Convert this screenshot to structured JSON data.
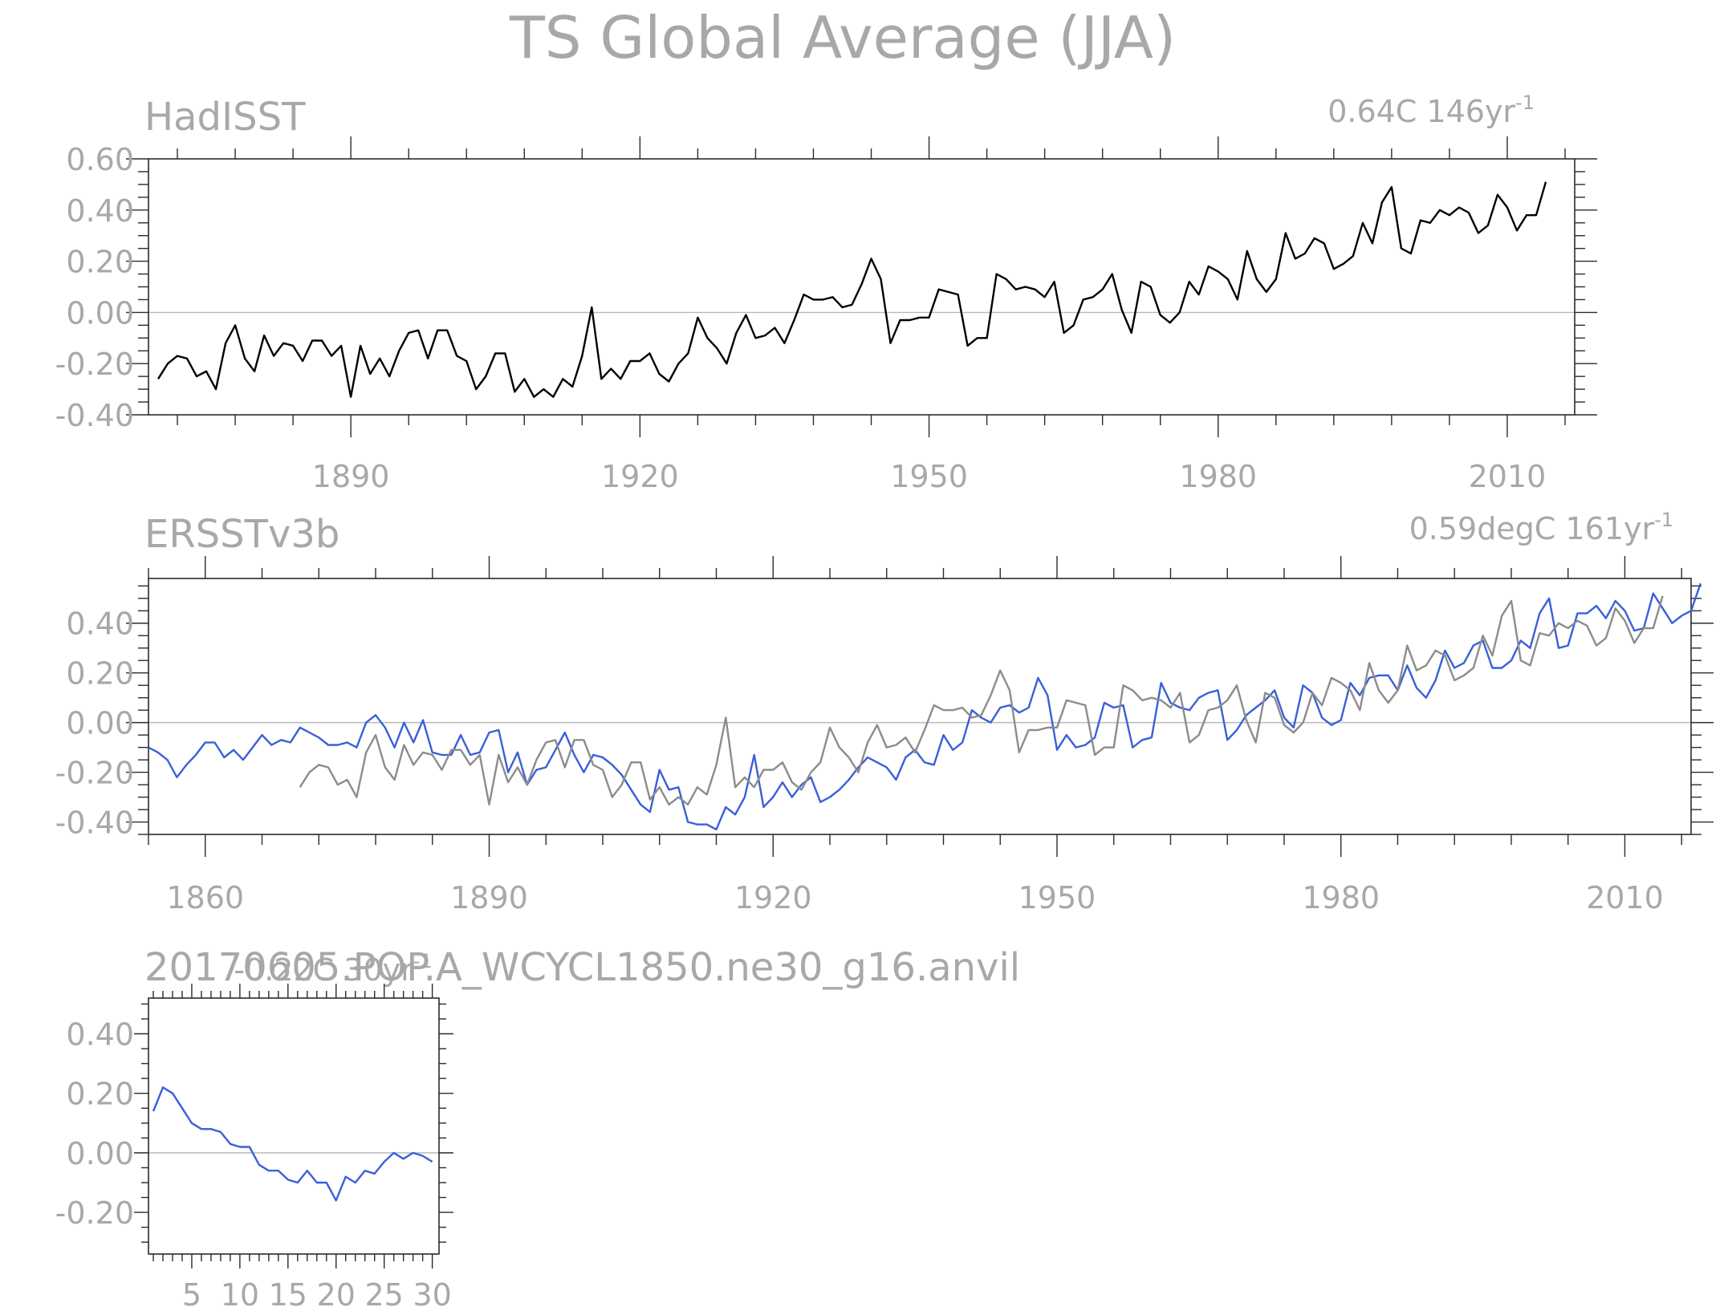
{
  "title": "TS Global Average (JJA)",
  "colors": {
    "text": "#a8a8a8",
    "black_series": "#000000",
    "blue_series": "#3a5fd9",
    "grey_series": "#8c8c8c"
  },
  "chart_data": [
    {
      "type": "line",
      "title": "HadISST",
      "right_text": "0.64C 146yr",
      "right_text_sup": "-1",
      "xlabel": "",
      "ylabel": "",
      "xlim": [
        1869,
        2017
      ],
      "ylim": [
        -0.4,
        0.6
      ],
      "yticks": [
        -0.4,
        -0.2,
        0.0,
        0.2,
        0.4,
        0.6
      ],
      "ytick_labels": [
        "-0.40",
        "-0.20",
        "0.00",
        "0.20",
        "0.40",
        "0.60"
      ],
      "xticks": [
        1890,
        1920,
        1950,
        1980,
        2010
      ],
      "xtick_labels": [
        "1890",
        "1920",
        "1950",
        "1980",
        "2010"
      ],
      "grid": false,
      "series": [
        {
          "color": "#000000",
          "x_start": 1870,
          "values": [
            -0.26,
            -0.2,
            -0.17,
            -0.18,
            -0.25,
            -0.23,
            -0.3,
            -0.12,
            -0.05,
            -0.18,
            -0.23,
            -0.09,
            -0.17,
            -0.12,
            -0.13,
            -0.19,
            -0.11,
            -0.11,
            -0.17,
            -0.13,
            -0.33,
            -0.13,
            -0.24,
            -0.18,
            -0.25,
            -0.15,
            -0.08,
            -0.07,
            -0.18,
            -0.07,
            -0.07,
            -0.17,
            -0.19,
            -0.3,
            -0.25,
            -0.16,
            -0.16,
            -0.31,
            -0.26,
            -0.33,
            -0.3,
            -0.33,
            -0.26,
            -0.29,
            -0.17,
            0.02,
            -0.26,
            -0.22,
            -0.26,
            -0.19,
            -0.19,
            -0.16,
            -0.24,
            -0.27,
            -0.2,
            -0.16,
            -0.02,
            -0.1,
            -0.14,
            -0.2,
            -0.08,
            -0.01,
            -0.1,
            -0.09,
            -0.06,
            -0.12,
            -0.03,
            0.07,
            0.05,
            0.05,
            0.06,
            0.02,
            0.03,
            0.11,
            0.21,
            0.13,
            -0.12,
            -0.03,
            -0.03,
            -0.02,
            -0.02,
            0.09,
            0.08,
            0.07,
            -0.13,
            -0.1,
            -0.1,
            0.15,
            0.13,
            0.09,
            0.1,
            0.09,
            0.06,
            0.12,
            -0.08,
            -0.05,
            0.05,
            0.06,
            0.09,
            0.15,
            0.01,
            -0.08,
            0.12,
            0.1,
            -0.01,
            -0.04,
            0.0,
            0.12,
            0.07,
            0.18,
            0.16,
            0.13,
            0.05,
            0.24,
            0.13,
            0.08,
            0.13,
            0.31,
            0.21,
            0.23,
            0.29,
            0.27,
            0.17,
            0.19,
            0.22,
            0.35,
            0.27,
            0.43,
            0.49,
            0.25,
            0.23,
            0.36,
            0.35,
            0.4,
            0.38,
            0.41,
            0.39,
            0.31,
            0.34,
            0.46,
            0.41,
            0.32,
            0.38,
            0.38,
            0.51
          ]
        }
      ]
    },
    {
      "type": "line",
      "title": "ERSSTv3b",
      "right_text": "0.59degC 161yr",
      "right_text_sup": "-1",
      "xlabel": "",
      "ylabel": "",
      "xlim": [
        1854,
        2017
      ],
      "ylim": [
        -0.45,
        0.58
      ],
      "yticks": [
        -0.4,
        -0.2,
        0.0,
        0.2,
        0.4
      ],
      "ytick_labels": [
        "-0.40",
        "-0.20",
        "0.00",
        "0.20",
        "0.40"
      ],
      "xticks": [
        1860,
        1890,
        1920,
        1950,
        1980,
        2010
      ],
      "xtick_labels": [
        "1860",
        "1890",
        "1920",
        "1950",
        "1980",
        "2010"
      ],
      "grid": false,
      "series": [
        {
          "color": "#3a5fd9",
          "x_start": 1854,
          "values": [
            -0.1,
            -0.12,
            -0.15,
            -0.22,
            -0.17,
            -0.13,
            -0.08,
            -0.08,
            -0.14,
            -0.11,
            -0.15,
            -0.1,
            -0.05,
            -0.09,
            -0.07,
            -0.08,
            -0.02,
            -0.04,
            -0.06,
            -0.09,
            -0.09,
            -0.08,
            -0.1,
            0.0,
            0.03,
            -0.02,
            -0.1,
            0.0,
            -0.08,
            0.01,
            -0.12,
            -0.13,
            -0.13,
            -0.05,
            -0.13,
            -0.12,
            -0.04,
            -0.03,
            -0.2,
            -0.12,
            -0.25,
            -0.19,
            -0.18,
            -0.11,
            -0.04,
            -0.13,
            -0.2,
            -0.13,
            -0.14,
            -0.17,
            -0.21,
            -0.27,
            -0.33,
            -0.36,
            -0.19,
            -0.27,
            -0.26,
            -0.4,
            -0.41,
            -0.41,
            -0.43,
            -0.34,
            -0.37,
            -0.3,
            -0.13,
            -0.34,
            -0.3,
            -0.24,
            -0.3,
            -0.25,
            -0.22,
            -0.32,
            -0.3,
            -0.27,
            -0.23,
            -0.18,
            -0.14,
            -0.16,
            -0.18,
            -0.23,
            -0.14,
            -0.11,
            -0.16,
            -0.17,
            -0.05,
            -0.11,
            -0.08,
            0.05,
            0.02,
            0.0,
            0.06,
            0.07,
            0.04,
            0.06,
            0.18,
            0.11,
            -0.11,
            -0.05,
            -0.1,
            -0.09,
            -0.06,
            0.08,
            0.06,
            0.07,
            -0.1,
            -0.07,
            -0.06,
            0.16,
            0.08,
            0.06,
            0.05,
            0.1,
            0.12,
            0.13,
            -0.07,
            -0.03,
            0.03,
            0.06,
            0.09,
            0.13,
            0.02,
            -0.02,
            0.15,
            0.12,
            0.02,
            -0.01,
            0.01,
            0.16,
            0.11,
            0.18,
            0.19,
            0.19,
            0.13,
            0.23,
            0.14,
            0.1,
            0.17,
            0.29,
            0.22,
            0.24,
            0.31,
            0.33,
            0.22,
            0.22,
            0.25,
            0.33,
            0.3,
            0.44,
            0.5,
            0.3,
            0.31,
            0.44,
            0.44,
            0.47,
            0.42,
            0.49,
            0.45,
            0.37,
            0.38,
            0.52,
            0.46,
            0.4,
            0.43,
            0.45,
            0.56
          ]
        },
        {
          "color": "#8c8c8c",
          "x_start": 1870,
          "values": [
            -0.26,
            -0.2,
            -0.17,
            -0.18,
            -0.25,
            -0.23,
            -0.3,
            -0.12,
            -0.05,
            -0.18,
            -0.23,
            -0.09,
            -0.17,
            -0.12,
            -0.13,
            -0.19,
            -0.11,
            -0.11,
            -0.17,
            -0.13,
            -0.33,
            -0.13,
            -0.24,
            -0.18,
            -0.25,
            -0.15,
            -0.08,
            -0.07,
            -0.18,
            -0.07,
            -0.07,
            -0.17,
            -0.19,
            -0.3,
            -0.25,
            -0.16,
            -0.16,
            -0.31,
            -0.26,
            -0.33,
            -0.3,
            -0.33,
            -0.26,
            -0.29,
            -0.17,
            0.02,
            -0.26,
            -0.22,
            -0.26,
            -0.19,
            -0.19,
            -0.16,
            -0.24,
            -0.27,
            -0.2,
            -0.16,
            -0.02,
            -0.1,
            -0.14,
            -0.2,
            -0.08,
            -0.01,
            -0.1,
            -0.09,
            -0.06,
            -0.12,
            -0.03,
            0.07,
            0.05,
            0.05,
            0.06,
            0.02,
            0.03,
            0.11,
            0.21,
            0.13,
            -0.12,
            -0.03,
            -0.03,
            -0.02,
            -0.02,
            0.09,
            0.08,
            0.07,
            -0.13,
            -0.1,
            -0.1,
            0.15,
            0.13,
            0.09,
            0.1,
            0.09,
            0.06,
            0.12,
            -0.08,
            -0.05,
            0.05,
            0.06,
            0.09,
            0.15,
            0.01,
            -0.08,
            0.12,
            0.1,
            -0.01,
            -0.04,
            0.0,
            0.12,
            0.07,
            0.18,
            0.16,
            0.13,
            0.05,
            0.24,
            0.13,
            0.08,
            0.13,
            0.31,
            0.21,
            0.23,
            0.29,
            0.27,
            0.17,
            0.19,
            0.22,
            0.35,
            0.27,
            0.43,
            0.49,
            0.25,
            0.23,
            0.36,
            0.35,
            0.4,
            0.38,
            0.41,
            0.39,
            0.31,
            0.34,
            0.46,
            0.41,
            0.32,
            0.38,
            0.38,
            0.51
          ]
        }
      ]
    },
    {
      "type": "line",
      "title": "20170605.POP.A_WCYCL1850.ne30_g16.anvil",
      "right_text": "-0.22C 30yr",
      "right_text_sup": "-1",
      "xlabel": "",
      "ylabel": "",
      "xlim": [
        0.5,
        30.7
      ],
      "ylim": [
        -0.34,
        0.52
      ],
      "yticks": [
        -0.2,
        0.0,
        0.2,
        0.4
      ],
      "ytick_labels": [
        "-0.20",
        "0.00",
        "0.20",
        "0.40"
      ],
      "xticks": [
        5,
        10,
        15,
        20,
        25,
        30
      ],
      "xtick_labels": [
        "5",
        "10",
        "15",
        "20",
        "25",
        "30"
      ],
      "grid": false,
      "series": [
        {
          "color": "#3a5fd9",
          "x_start": 1,
          "values": [
            0.14,
            0.22,
            0.2,
            0.15,
            0.1,
            0.08,
            0.08,
            0.07,
            0.03,
            0.02,
            0.02,
            -0.04,
            -0.06,
            -0.06,
            -0.09,
            -0.1,
            -0.06,
            -0.1,
            -0.1,
            -0.16,
            -0.08,
            -0.1,
            -0.06,
            -0.07,
            -0.03,
            0.0,
            -0.02,
            0.0,
            -0.01,
            -0.03
          ]
        }
      ]
    }
  ]
}
